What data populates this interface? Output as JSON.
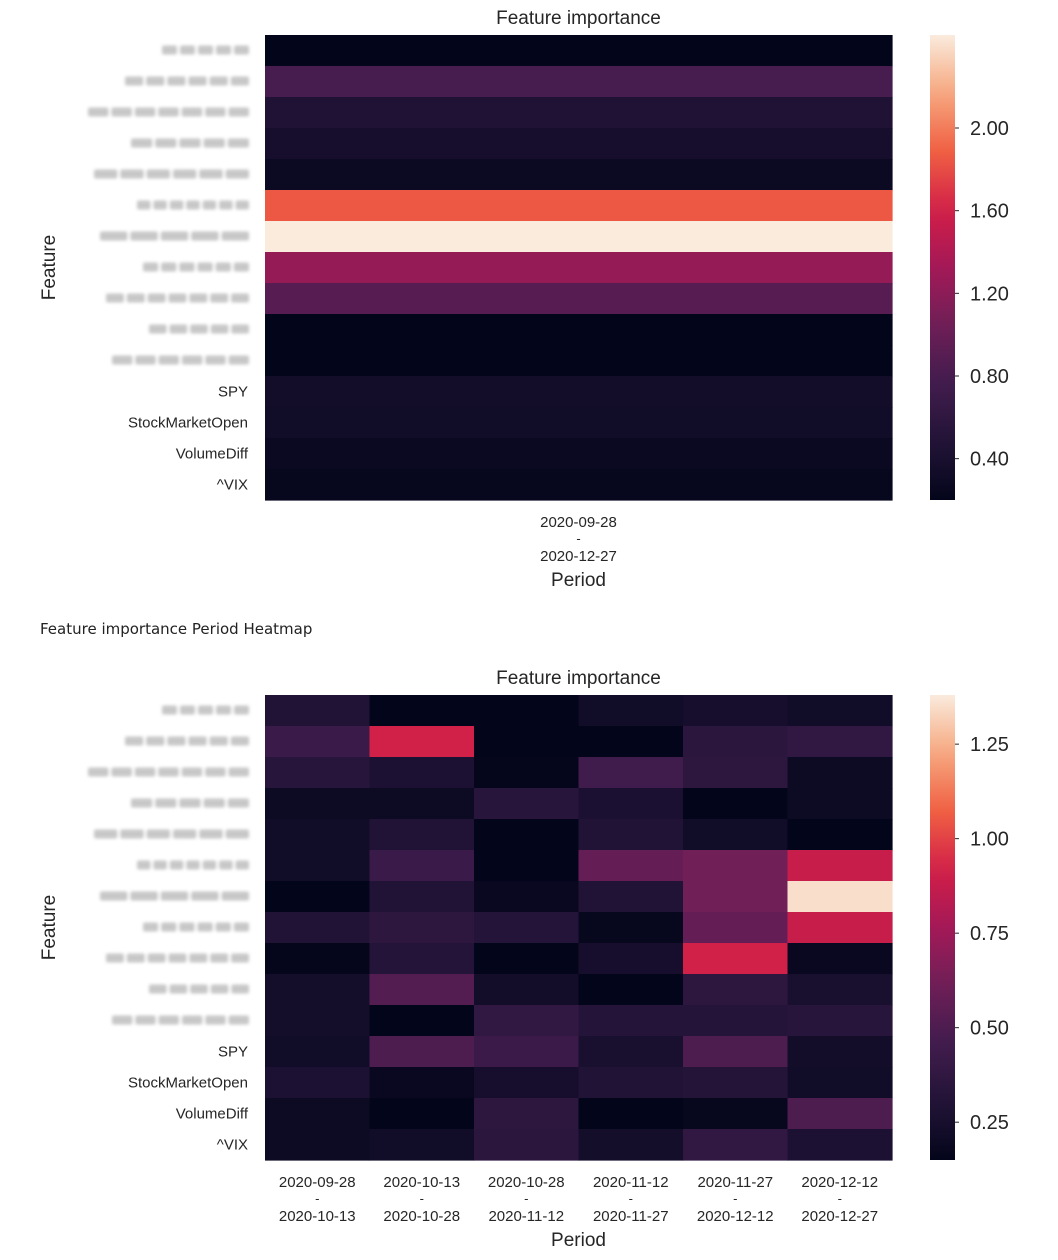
{
  "section_heading": "Feature importance Period Heatmap",
  "chart_data": [
    {
      "type": "heatmap",
      "title": "Feature importance",
      "xlabel": "Period",
      "ylabel": "Feature",
      "x_categories": [
        {
          "start": "2020-09-28",
          "sep": "-",
          "end": "2020-12-27"
        }
      ],
      "y_categories": [
        {
          "label": "",
          "redacted": true
        },
        {
          "label": "",
          "redacted": true
        },
        {
          "label": "",
          "redacted": true
        },
        {
          "label": "",
          "redacted": true
        },
        {
          "label": "",
          "redacted": true
        },
        {
          "label": "",
          "redacted": true
        },
        {
          "label": "",
          "redacted": true
        },
        {
          "label": "",
          "redacted": true
        },
        {
          "label": "",
          "redacted": true
        },
        {
          "label": "",
          "redacted": true
        },
        {
          "label": "",
          "redacted": true
        },
        {
          "label": "SPY",
          "redacted": false
        },
        {
          "label": "StockMarketOpen",
          "redacted": false
        },
        {
          "label": "VolumeDiff",
          "redacted": false
        },
        {
          "label": "^VIX",
          "redacted": false
        }
      ],
      "values": [
        [
          0.12
        ],
        [
          0.8
        ],
        [
          0.45
        ],
        [
          0.38
        ],
        [
          0.28
        ],
        [
          1.85
        ],
        [
          2.45
        ],
        [
          1.25
        ],
        [
          0.9
        ],
        [
          0.1
        ],
        [
          0.15
        ],
        [
          0.35
        ],
        [
          0.33
        ],
        [
          0.27
        ],
        [
          0.24
        ]
      ],
      "colorbar": {
        "min": 0.2,
        "max": 2.45,
        "ticks": [
          0.4,
          0.8,
          1.2,
          1.6,
          2.0
        ],
        "tick_labels": [
          "0.40",
          "0.80",
          "1.20",
          "1.60",
          "2.00"
        ]
      },
      "colormap": "rocket"
    },
    {
      "type": "heatmap",
      "title": "Feature importance",
      "xlabel": "Period",
      "ylabel": "Feature",
      "x_categories": [
        {
          "start": "2020-09-28",
          "sep": "-",
          "end": "2020-10-13"
        },
        {
          "start": "2020-10-13",
          "sep": "-",
          "end": "2020-10-28"
        },
        {
          "start": "2020-10-28",
          "sep": "-",
          "end": "2020-11-12"
        },
        {
          "start": "2020-11-12",
          "sep": "-",
          "end": "2020-11-27"
        },
        {
          "start": "2020-11-27",
          "sep": "-",
          "end": "2020-12-12"
        },
        {
          "start": "2020-12-12",
          "sep": "-",
          "end": "2020-12-27"
        }
      ],
      "y_categories": [
        {
          "label": "",
          "redacted": true
        },
        {
          "label": "",
          "redacted": true
        },
        {
          "label": "",
          "redacted": true
        },
        {
          "label": "",
          "redacted": true
        },
        {
          "label": "",
          "redacted": true
        },
        {
          "label": "",
          "redacted": true
        },
        {
          "label": "",
          "redacted": true
        },
        {
          "label": "",
          "redacted": true
        },
        {
          "label": "",
          "redacted": true
        },
        {
          "label": "",
          "redacted": true
        },
        {
          "label": "",
          "redacted": true
        },
        {
          "label": "SPY",
          "redacted": false
        },
        {
          "label": "StockMarketOpen",
          "redacted": false
        },
        {
          "label": "VolumeDiff",
          "redacted": false
        },
        {
          "label": "^VIX",
          "redacted": false
        }
      ],
      "values": [
        [
          0.3,
          0.08,
          0.15,
          0.22,
          0.25,
          0.22
        ],
        [
          0.42,
          0.92,
          0.12,
          0.14,
          0.35,
          0.38
        ],
        [
          0.33,
          0.28,
          0.16,
          0.45,
          0.36,
          0.2
        ],
        [
          0.2,
          0.2,
          0.33,
          0.27,
          0.12,
          0.2
        ],
        [
          0.22,
          0.3,
          0.1,
          0.3,
          0.22,
          0.14
        ],
        [
          0.22,
          0.42,
          0.1,
          0.58,
          0.62,
          0.88
        ],
        [
          0.1,
          0.3,
          0.18,
          0.3,
          0.62,
          1.35
        ],
        [
          0.3,
          0.36,
          0.32,
          0.17,
          0.58,
          0.88
        ],
        [
          0.16,
          0.32,
          0.14,
          0.25,
          0.92,
          0.18
        ],
        [
          0.24,
          0.52,
          0.23,
          0.14,
          0.36,
          0.26
        ],
        [
          0.24,
          0.07,
          0.38,
          0.32,
          0.32,
          0.33
        ],
        [
          0.22,
          0.5,
          0.43,
          0.26,
          0.5,
          0.23
        ],
        [
          0.28,
          0.18,
          0.25,
          0.3,
          0.31,
          0.22
        ],
        [
          0.2,
          0.13,
          0.36,
          0.08,
          0.17,
          0.5
        ],
        [
          0.2,
          0.22,
          0.35,
          0.24,
          0.38,
          0.28
        ]
      ],
      "colorbar": {
        "min": 0.15,
        "max": 1.38,
        "ticks": [
          0.25,
          0.5,
          0.75,
          1.0,
          1.25
        ],
        "tick_labels": [
          "0.25",
          "0.50",
          "0.75",
          "1.00",
          "1.25"
        ]
      },
      "colormap": "rocket"
    }
  ]
}
